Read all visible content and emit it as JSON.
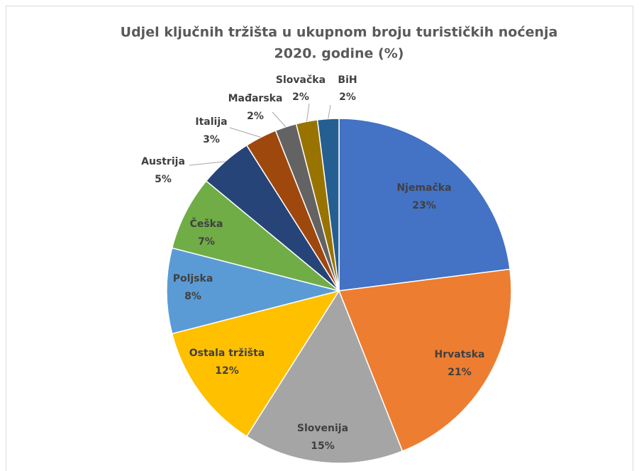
{
  "chart_data": {
    "type": "pie",
    "title": [
      "Udjel ključnih tržišta u ukupnom broju turističkih noćenja",
      "2020. godine (%)"
    ],
    "categories": [
      "Njemačka",
      "Hrvatska",
      "Slovenija",
      "Ostala tržišta",
      "Poljska",
      "Češka",
      "Austrija",
      "Italija",
      "Mađarska",
      "Slovačka",
      "BiH"
    ],
    "values": [
      23,
      21,
      15,
      12,
      8,
      7,
      5,
      3,
      2,
      2,
      2
    ],
    "value_labels": [
      "23%",
      "21%",
      "15%",
      "12%",
      "8%",
      "7%",
      "5%",
      "3%",
      "2%",
      "2%",
      "2%"
    ],
    "colors": [
      "#4472c4",
      "#ed7d31",
      "#a5a5a5",
      "#ffc000",
      "#5b9bd5",
      "#70ad47",
      "#264478",
      "#9e480e",
      "#636363",
      "#997300",
      "#255e91"
    ]
  }
}
